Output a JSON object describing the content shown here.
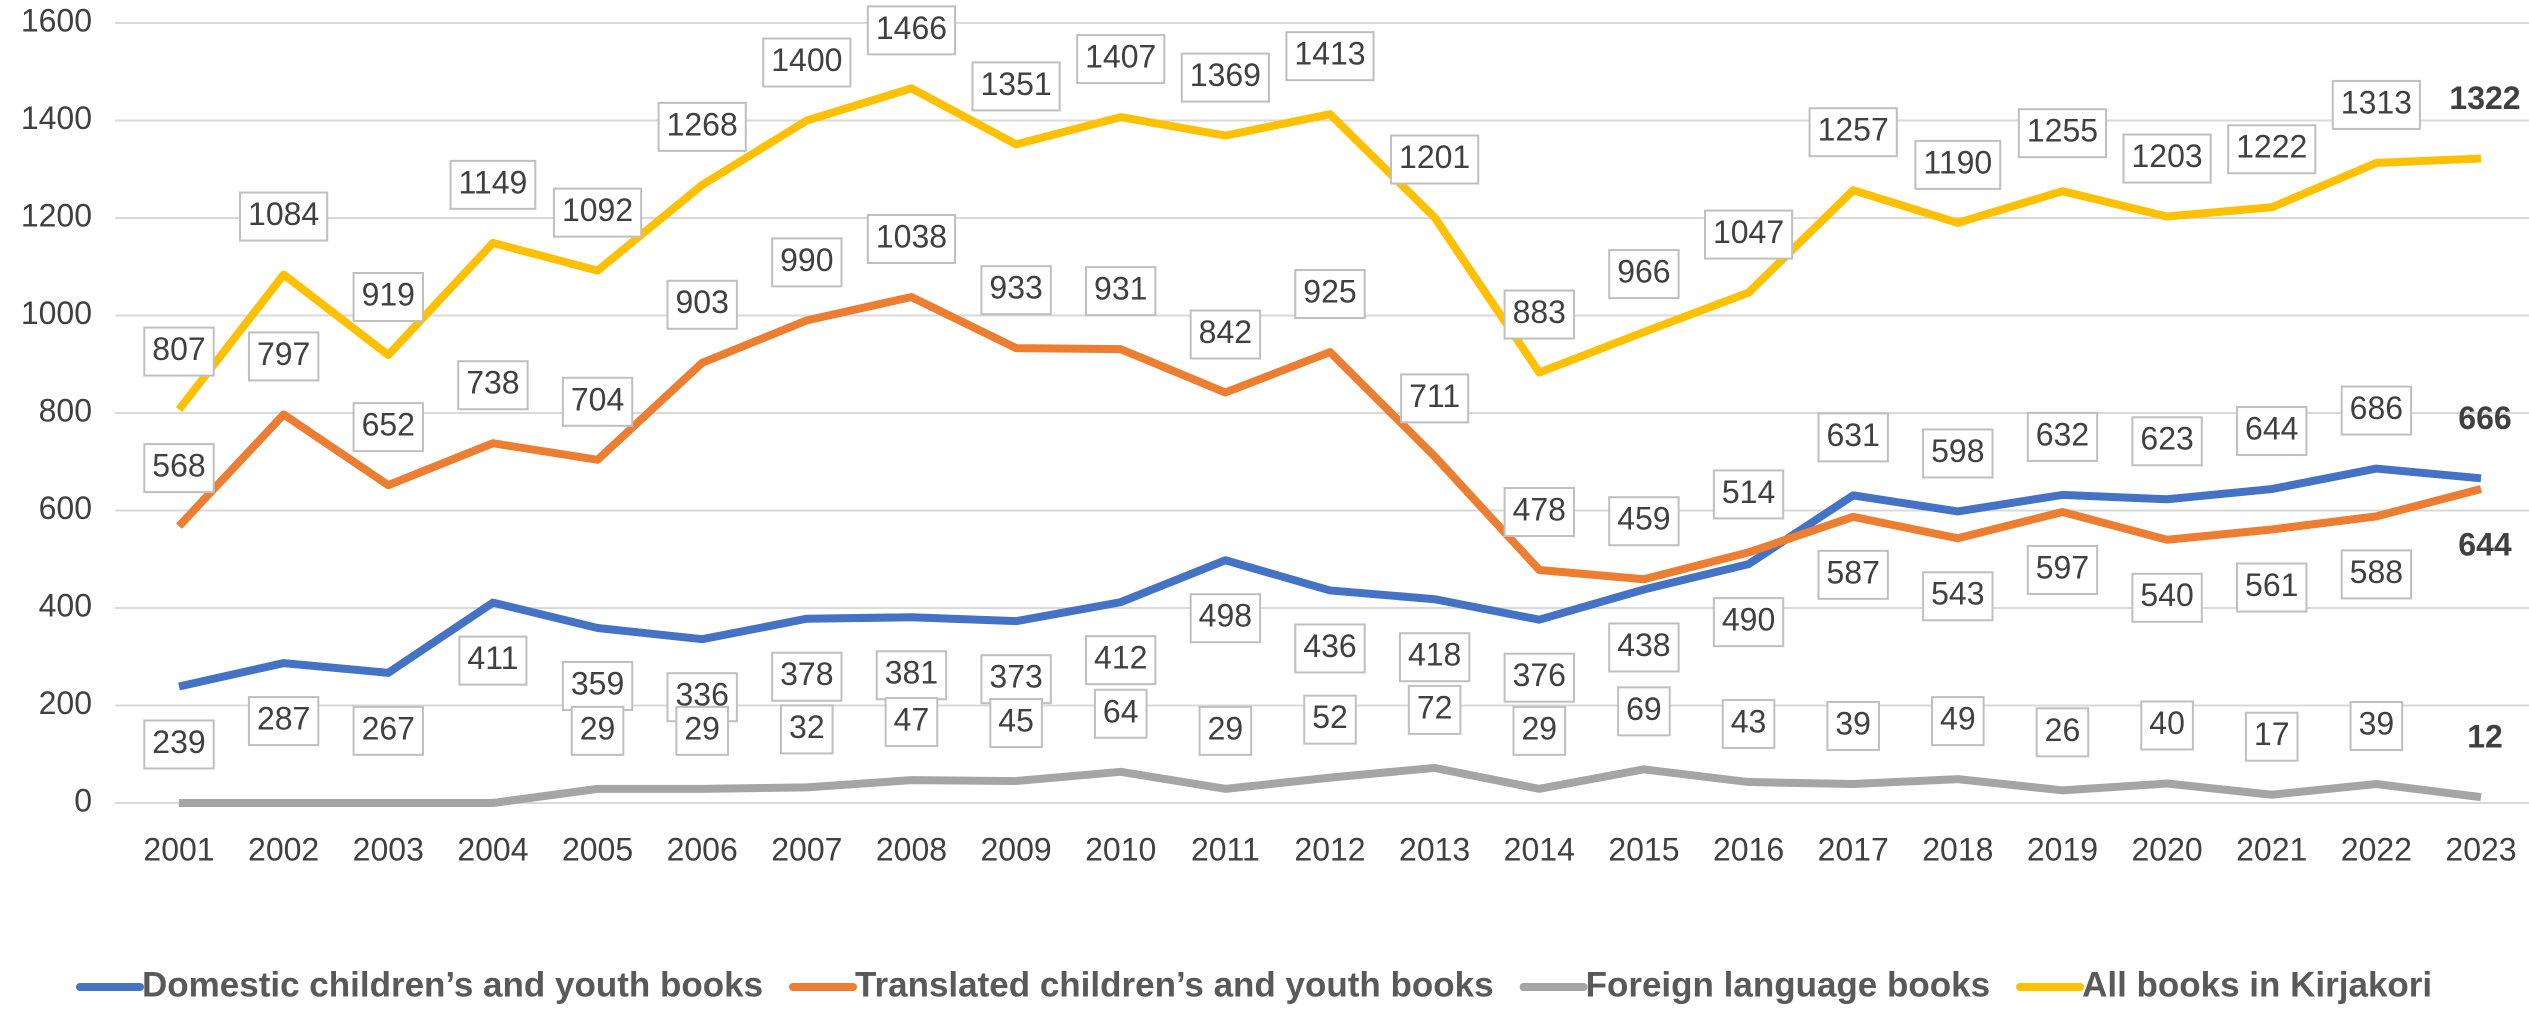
{
  "chart_data": {
    "type": "line",
    "categories": [
      "2001",
      "2002",
      "2003",
      "2004",
      "2005",
      "2006",
      "2007",
      "2008",
      "2009",
      "2010",
      "2011",
      "2012",
      "2013",
      "2014",
      "2015",
      "2016",
      "2017",
      "2018",
      "2019",
      "2020",
      "2021",
      "2022",
      "2023"
    ],
    "ylim": [
      0,
      1600
    ],
    "yticks": [
      0,
      200,
      400,
      600,
      800,
      1000,
      1200,
      1400,
      1600
    ],
    "grid": true,
    "legend": "bottom",
    "series": [
      {
        "name": "Domestic children’s and youth books",
        "color": "#4472c4",
        "values": [
          239,
          287,
          267,
          411,
          359,
          336,
          378,
          381,
          373,
          412,
          498,
          436,
          418,
          376,
          438,
          490,
          631,
          598,
          632,
          623,
          644,
          686,
          666
        ]
      },
      {
        "name": "Translated children’s and youth books",
        "color": "#ed7d31",
        "values": [
          568,
          797,
          652,
          738,
          704,
          903,
          990,
          1038,
          933,
          931,
          842,
          925,
          711,
          478,
          459,
          514,
          587,
          543,
          597,
          540,
          561,
          588,
          644
        ]
      },
      {
        "name": "Foreign language books",
        "color": "#a5a5a5",
        "values": [
          0,
          0,
          0,
          0,
          29,
          29,
          32,
          47,
          45,
          64,
          29,
          52,
          72,
          29,
          69,
          43,
          39,
          49,
          26,
          40,
          17,
          39,
          12
        ],
        "value_labels": [
          null,
          null,
          null,
          null,
          "29",
          "29",
          "32",
          "47",
          "45",
          "64",
          "29",
          "52",
          "72",
          "29",
          "69",
          "43",
          "39",
          "49",
          "26",
          "40",
          "17",
          "39",
          "12"
        ]
      },
      {
        "name": "All books in Kirjakori",
        "color": "#ffc000",
        "values": [
          807,
          1084,
          919,
          1149,
          1092,
          1268,
          1400,
          1466,
          1351,
          1407,
          1369,
          1413,
          1201,
          883,
          966,
          1047,
          1257,
          1190,
          1255,
          1203,
          1222,
          1313,
          1322
        ]
      }
    ]
  }
}
